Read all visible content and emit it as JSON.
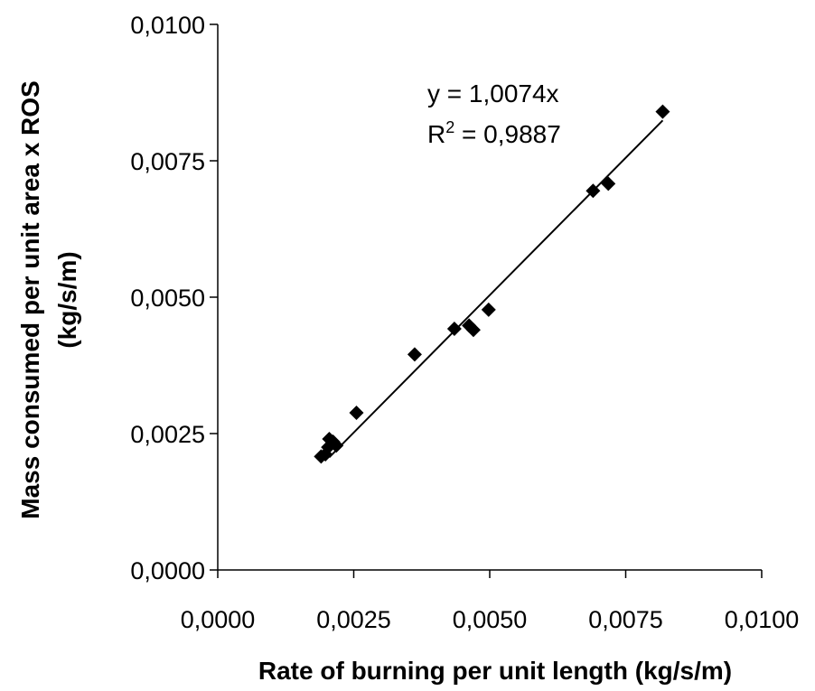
{
  "chart_data": {
    "type": "scatter",
    "xlabel": "Rate of burning per unit length (kg/s/m)",
    "ylabel_line1": "Mass consumed per unit area x ROS",
    "ylabel_line2": "(kg/s/m)",
    "xlim": [
      0,
      0.01
    ],
    "ylim": [
      0,
      0.01
    ],
    "x_ticks": [
      0,
      0.0025,
      0.005,
      0.0075,
      0.01
    ],
    "x_tick_labels": [
      "0,0000",
      "0,0025",
      "0,0050",
      "0,0075",
      "0,0100"
    ],
    "y_ticks": [
      0,
      0.0025,
      0.005,
      0.0075,
      0.01
    ],
    "y_tick_labels": [
      "0,0000",
      "0,0025",
      "0,0050",
      "0,0075",
      "0,0100"
    ],
    "grid": false,
    "marker": "diamond",
    "color": "#000000",
    "series": [
      {
        "points": [
          [
            0.0019,
            0.00208
          ],
          [
            0.00198,
            0.00212
          ],
          [
            0.00203,
            0.00225
          ],
          [
            0.00205,
            0.0024
          ],
          [
            0.00212,
            0.00235
          ],
          [
            0.00218,
            0.00228
          ],
          [
            0.00255,
            0.00288
          ],
          [
            0.00362,
            0.00395
          ],
          [
            0.00435,
            0.00442
          ],
          [
            0.00462,
            0.00448
          ],
          [
            0.0047,
            0.0044
          ],
          [
            0.00498,
            0.00477
          ],
          [
            0.0069,
            0.00695
          ],
          [
            0.00718,
            0.00708
          ],
          [
            0.00818,
            0.0084
          ]
        ]
      }
    ],
    "trendline": {
      "slope": 1.0074,
      "x_range": [
        0.00205,
        0.00818
      ],
      "equation_label": "y = 1,0074x",
      "r2_prefix": "R",
      "r2_superscript": "2",
      "r2_value": " = 0,9887"
    }
  }
}
